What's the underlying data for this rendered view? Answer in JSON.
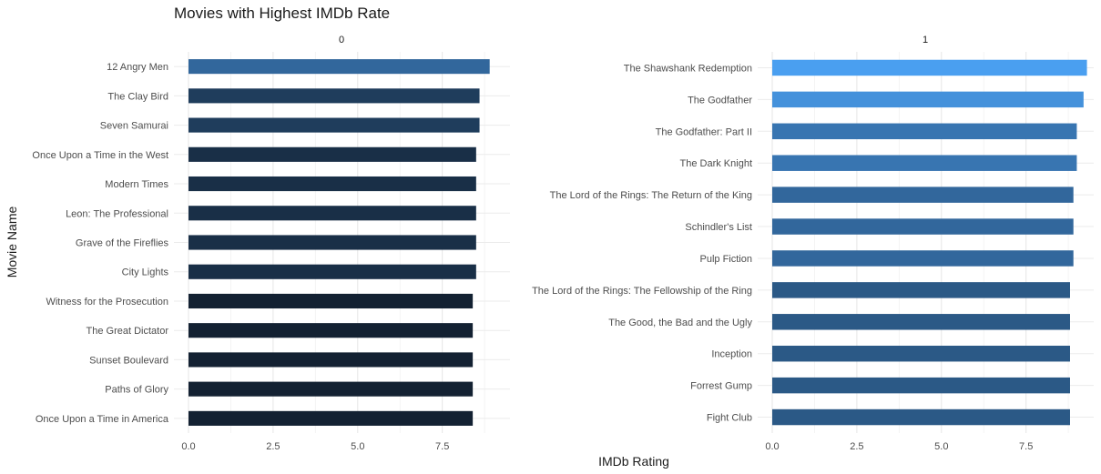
{
  "chart_data": {
    "type": "bar",
    "orientation": "horizontal",
    "title": "Movies with Highest IMDb Rate",
    "xlabel": "IMDb Rating",
    "ylabel": "Movie Name",
    "xlim": [
      0,
      9.5
    ],
    "x_ticks": [
      "0.0",
      "2.5",
      "5.0",
      "7.5"
    ],
    "grid": true,
    "colors": {
      "low": "#132132",
      "high": "#4a9ff0"
    },
    "facets": [
      {
        "label": "0",
        "categories": [
          "12 Angry Men",
          "The Clay Bird",
          "Seven Samurai",
          "Once Upon a Time in the West",
          "Modern Times",
          "Leon: The Professional",
          "Grave of the Fireflies",
          "City Lights",
          "Witness for the Prosecution",
          "The Great Dictator",
          "Sunset Boulevard",
          "Paths of Glory",
          "Once Upon a Time in America"
        ],
        "values": [
          8.9,
          8.6,
          8.6,
          8.5,
          8.5,
          8.5,
          8.5,
          8.5,
          8.4,
          8.4,
          8.4,
          8.4,
          8.4
        ]
      },
      {
        "label": "1",
        "categories": [
          "The Shawshank Redemption",
          "The Godfather",
          "The Godfather: Part II",
          "The Dark Knight",
          "The Lord of the Rings: The Return of the King",
          "Schindler's List",
          "Pulp Fiction",
          "The Lord of the Rings: The Fellowship of the Ring",
          "The Good, the Bad and the Ugly",
          "Inception",
          "Forrest Gump",
          "Fight Club"
        ],
        "values": [
          9.3,
          9.2,
          9.0,
          9.0,
          8.9,
          8.9,
          8.9,
          8.8,
          8.8,
          8.8,
          8.8,
          8.8
        ]
      }
    ]
  }
}
